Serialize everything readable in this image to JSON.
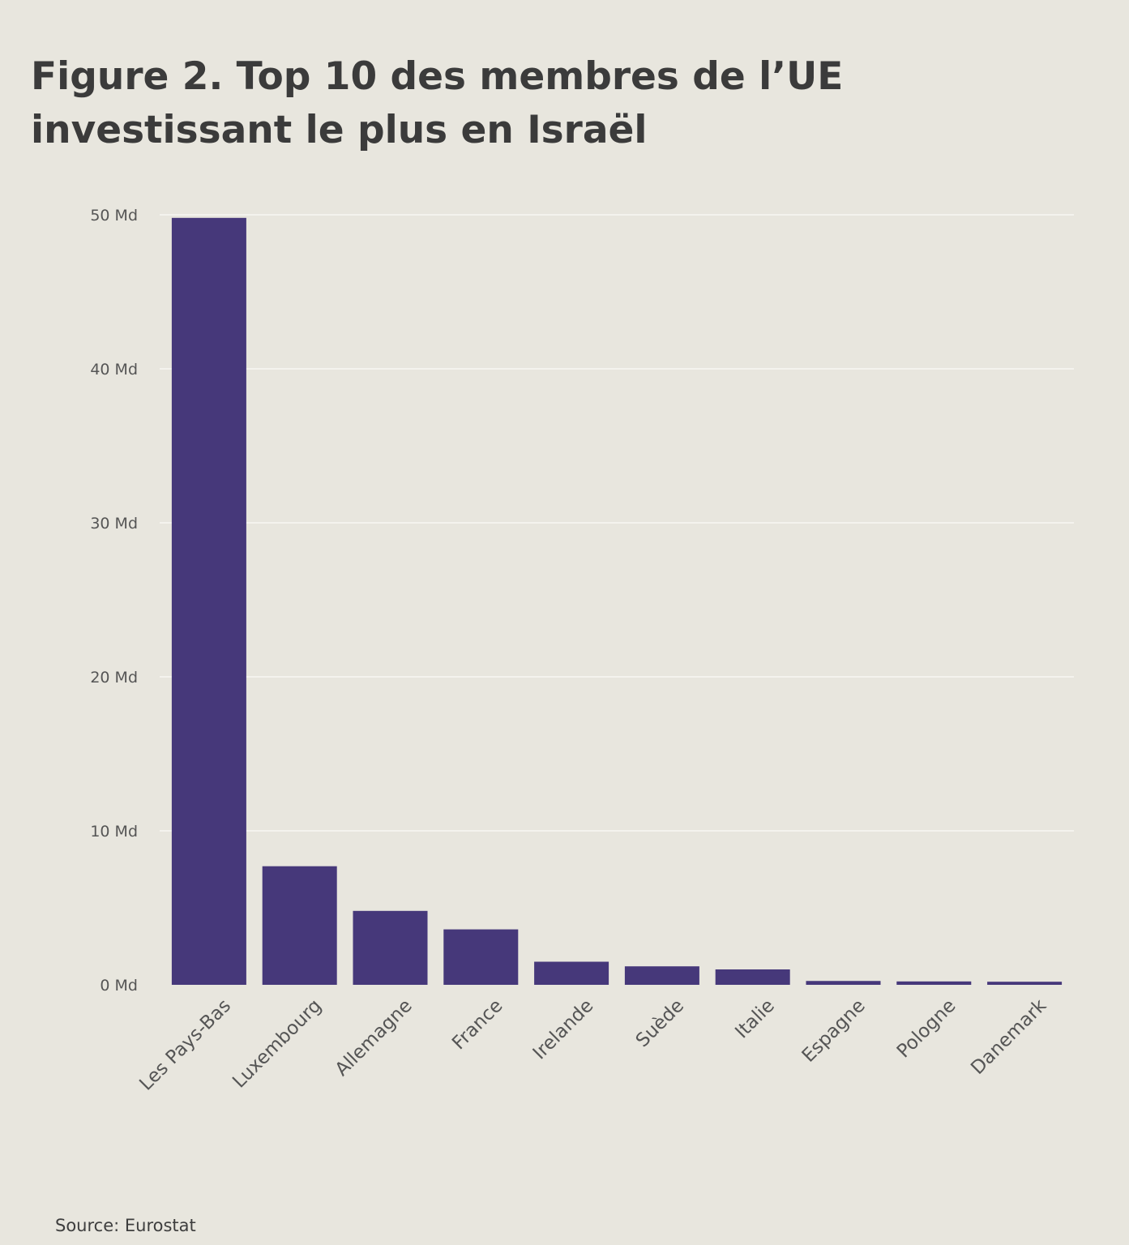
{
  "title": {
    "line1": "Figure 2. Top 10 des membres de l’UE",
    "line2": "investissant le plus en Israël"
  },
  "source": "Source: Eurostat",
  "colors": {
    "background": "#e8e6de",
    "bar": "#46387a",
    "grid": "#f4f3ee",
    "text": "#3a3a3a",
    "tick_text": "#555555"
  },
  "chart_data": {
    "type": "bar",
    "title": "Figure 2. Top 10 des membres de l’UE investissant le plus en Israël",
    "xlabel": "",
    "ylabel": "",
    "categories": [
      "Les Pays-Bas",
      "Luxembourg",
      "Allemagne",
      "France",
      "Irelande",
      "Suède",
      "Italie",
      "Espagne",
      "Pologne",
      "Danemark"
    ],
    "values": [
      49.8,
      7.7,
      4.8,
      3.6,
      1.5,
      1.2,
      1.0,
      0.25,
      0.22,
      0.2
    ],
    "unit": "Md",
    "ylim": [
      0,
      50
    ],
    "yticks": [
      0,
      10,
      20,
      30,
      40,
      50
    ],
    "ytick_labels": [
      "0 Md",
      "10 Md",
      "20 Md",
      "30 Md",
      "40 Md",
      "50 Md"
    ],
    "grid": true,
    "legend": "none"
  }
}
